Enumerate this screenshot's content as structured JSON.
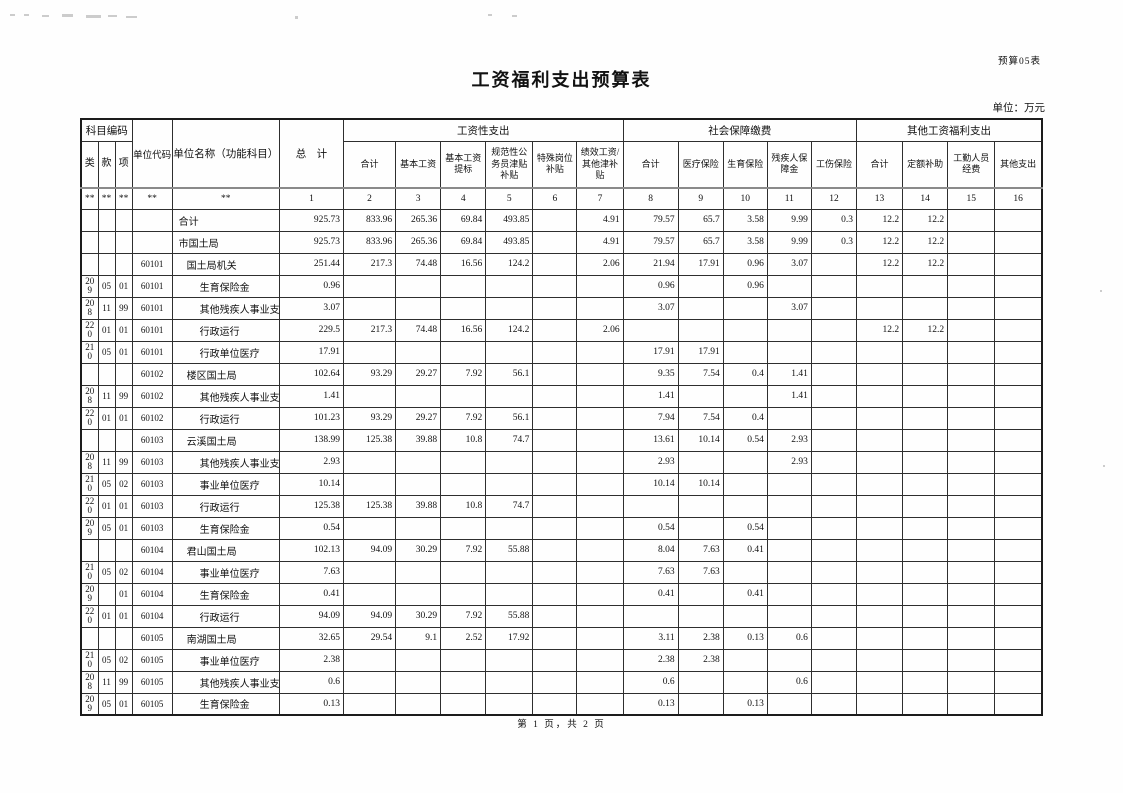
{
  "page": {
    "doc_label": "预算05表",
    "title": "工资福利支出预算表",
    "unit_note": "单位：万元",
    "footer": "第 1 页，共 2 页"
  },
  "table": {
    "header": {
      "subject_code": "科目编码",
      "lei": "类",
      "kuan": "款",
      "xiang": "项",
      "unit_code": "单位代码",
      "unit_name": "单位名称（功能科目）",
      "total": "总　计",
      "groups": [
        {
          "label": "工资性支出",
          "cols": [
            "合计",
            "基本工资",
            "基本工资提标",
            "规范性公务员津贴补贴",
            "特殊岗位补贴",
            "绩效工资/其他津补贴"
          ]
        },
        {
          "label": "社会保障缴费",
          "cols": [
            "合计",
            "医疗保险",
            "生育保险",
            "残疾人保障金",
            "工伤保险"
          ]
        },
        {
          "label": "其他工资福利支出",
          "cols": [
            "合计",
            "定额补助",
            "工勤人员经费",
            "其他支出"
          ]
        }
      ],
      "index_row": [
        "**",
        "**",
        "**",
        "**",
        "**",
        "1",
        "2",
        "3",
        "4",
        "5",
        "6",
        "7",
        "8",
        "9",
        "10",
        "11",
        "12",
        "13",
        "14",
        "15",
        "16"
      ]
    },
    "rows": [
      {
        "lei": "",
        "kuan": "",
        "xiang": "",
        "code": "",
        "name": "合计",
        "indent": 0,
        "v": [
          "925.73",
          "833.96",
          "265.36",
          "69.84",
          "493.85",
          "",
          "4.91",
          "79.57",
          "65.7",
          "3.58",
          "9.99",
          "0.3",
          "12.2",
          "12.2",
          "",
          ""
        ]
      },
      {
        "lei": "",
        "kuan": "",
        "xiang": "",
        "code": "",
        "name": "市国土局",
        "indent": 0,
        "v": [
          "925.73",
          "833.96",
          "265.36",
          "69.84",
          "493.85",
          "",
          "4.91",
          "79.57",
          "65.7",
          "3.58",
          "9.99",
          "0.3",
          "12.2",
          "12.2",
          "",
          ""
        ]
      },
      {
        "lei": "",
        "kuan": "",
        "xiang": "",
        "code": "60101",
        "name": "国土局机关",
        "indent": 1,
        "v": [
          "251.44",
          "217.3",
          "74.48",
          "16.56",
          "124.2",
          "",
          "2.06",
          "21.94",
          "17.91",
          "0.96",
          "3.07",
          "",
          "12.2",
          "12.2",
          "",
          ""
        ]
      },
      {
        "lei": "209",
        "kuan": "05",
        "xiang": "01",
        "code": "60101",
        "name": "生育保险金",
        "indent": 2,
        "v": [
          "0.96",
          "",
          "",
          "",
          "",
          "",
          "",
          "0.96",
          "",
          "0.96",
          "",
          "",
          "",
          "",
          "",
          ""
        ]
      },
      {
        "lei": "208",
        "kuan": "11",
        "xiang": "99",
        "code": "60101",
        "name": "其他残疾人事业支出",
        "indent": 2,
        "v": [
          "3.07",
          "",
          "",
          "",
          "",
          "",
          "",
          "3.07",
          "",
          "",
          "3.07",
          "",
          "",
          "",
          "",
          ""
        ]
      },
      {
        "lei": "220",
        "kuan": "01",
        "xiang": "01",
        "code": "60101",
        "name": "行政运行",
        "indent": 2,
        "v": [
          "229.5",
          "217.3",
          "74.48",
          "16.56",
          "124.2",
          "",
          "2.06",
          "",
          "",
          "",
          "",
          "",
          "12.2",
          "12.2",
          "",
          ""
        ]
      },
      {
        "lei": "210",
        "kuan": "05",
        "xiang": "01",
        "code": "60101",
        "name": "行政单位医疗",
        "indent": 2,
        "v": [
          "17.91",
          "",
          "",
          "",
          "",
          "",
          "",
          "17.91",
          "17.91",
          "",
          "",
          "",
          "",
          "",
          "",
          ""
        ]
      },
      {
        "lei": "",
        "kuan": "",
        "xiang": "",
        "code": "60102",
        "name": "楼区国土局",
        "indent": 1,
        "v": [
          "102.64",
          "93.29",
          "29.27",
          "7.92",
          "56.1",
          "",
          "",
          "9.35",
          "7.54",
          "0.4",
          "1.41",
          "",
          "",
          "",
          "",
          ""
        ]
      },
      {
        "lei": "208",
        "kuan": "11",
        "xiang": "99",
        "code": "60102",
        "name": "其他残疾人事业支出",
        "indent": 2,
        "v": [
          "1.41",
          "",
          "",
          "",
          "",
          "",
          "",
          "1.41",
          "",
          "",
          "1.41",
          "",
          "",
          "",
          "",
          ""
        ]
      },
      {
        "lei": "220",
        "kuan": "01",
        "xiang": "01",
        "code": "60102",
        "name": "行政运行",
        "indent": 2,
        "v": [
          "101.23",
          "93.29",
          "29.27",
          "7.92",
          "56.1",
          "",
          "",
          "7.94",
          "7.54",
          "0.4",
          "",
          "",
          "",
          "",
          "",
          ""
        ]
      },
      {
        "lei": "",
        "kuan": "",
        "xiang": "",
        "code": "60103",
        "name": "云溪国土局",
        "indent": 1,
        "v": [
          "138.99",
          "125.38",
          "39.88",
          "10.8",
          "74.7",
          "",
          "",
          "13.61",
          "10.14",
          "0.54",
          "2.93",
          "",
          "",
          "",
          "",
          ""
        ]
      },
      {
        "lei": "208",
        "kuan": "11",
        "xiang": "99",
        "code": "60103",
        "name": "其他残疾人事业支出",
        "indent": 2,
        "v": [
          "2.93",
          "",
          "",
          "",
          "",
          "",
          "",
          "2.93",
          "",
          "",
          "2.93",
          "",
          "",
          "",
          "",
          ""
        ]
      },
      {
        "lei": "210",
        "kuan": "05",
        "xiang": "02",
        "code": "60103",
        "name": "事业单位医疗",
        "indent": 2,
        "v": [
          "10.14",
          "",
          "",
          "",
          "",
          "",
          "",
          "10.14",
          "10.14",
          "",
          "",
          "",
          "",
          "",
          "",
          ""
        ]
      },
      {
        "lei": "220",
        "kuan": "01",
        "xiang": "01",
        "code": "60103",
        "name": "行政运行",
        "indent": 2,
        "v": [
          "125.38",
          "125.38",
          "39.88",
          "10.8",
          "74.7",
          "",
          "",
          "",
          "",
          "",
          "",
          "",
          "",
          "",
          "",
          ""
        ]
      },
      {
        "lei": "209",
        "kuan": "05",
        "xiang": "01",
        "code": "60103",
        "name": "生育保险金",
        "indent": 2,
        "v": [
          "0.54",
          "",
          "",
          "",
          "",
          "",
          "",
          "0.54",
          "",
          "0.54",
          "",
          "",
          "",
          "",
          "",
          ""
        ]
      },
      {
        "lei": "",
        "kuan": "",
        "xiang": "",
        "code": "60104",
        "name": "君山国土局",
        "indent": 1,
        "v": [
          "102.13",
          "94.09",
          "30.29",
          "7.92",
          "55.88",
          "",
          "",
          "8.04",
          "7.63",
          "0.41",
          "",
          "",
          "",
          "",
          "",
          ""
        ]
      },
      {
        "lei": "210",
        "kuan": "05",
        "xiang": "02",
        "code": "60104",
        "name": "事业单位医疗",
        "indent": 2,
        "v": [
          "7.63",
          "",
          "",
          "",
          "",
          "",
          "",
          "7.63",
          "7.63",
          "",
          "",
          "",
          "",
          "",
          "",
          ""
        ]
      },
      {
        "lei": "209",
        "kuan": "",
        "xiang": "01",
        "code": "60104",
        "name": "生育保险金",
        "indent": 2,
        "v": [
          "0.41",
          "",
          "",
          "",
          "",
          "",
          "",
          "0.41",
          "",
          "0.41",
          "",
          "",
          "",
          "",
          "",
          ""
        ]
      },
      {
        "lei": "220",
        "kuan": "01",
        "xiang": "01",
        "code": "60104",
        "name": "行政运行",
        "indent": 2,
        "v": [
          "94.09",
          "94.09",
          "30.29",
          "7.92",
          "55.88",
          "",
          "",
          "",
          "",
          "",
          "",
          "",
          "",
          "",
          "",
          ""
        ]
      },
      {
        "lei": "",
        "kuan": "",
        "xiang": "",
        "code": "60105",
        "name": "南湖国土局",
        "indent": 1,
        "v": [
          "32.65",
          "29.54",
          "9.1",
          "2.52",
          "17.92",
          "",
          "",
          "3.11",
          "2.38",
          "0.13",
          "0.6",
          "",
          "",
          "",
          "",
          ""
        ]
      },
      {
        "lei": "210",
        "kuan": "05",
        "xiang": "02",
        "code": "60105",
        "name": "事业单位医疗",
        "indent": 2,
        "v": [
          "2.38",
          "",
          "",
          "",
          "",
          "",
          "",
          "2.38",
          "2.38",
          "",
          "",
          "",
          "",
          "",
          "",
          ""
        ]
      },
      {
        "lei": "208",
        "kuan": "11",
        "xiang": "99",
        "code": "60105",
        "name": "其他残疾人事业支出",
        "indent": 2,
        "v": [
          "0.6",
          "",
          "",
          "",
          "",
          "",
          "",
          "0.6",
          "",
          "",
          "0.6",
          "",
          "",
          "",
          "",
          ""
        ]
      },
      {
        "lei": "209",
        "kuan": "05",
        "xiang": "01",
        "code": "60105",
        "name": "生育保险金",
        "indent": 2,
        "v": [
          "0.13",
          "",
          "",
          "",
          "",
          "",
          "",
          "0.13",
          "",
          "0.13",
          "",
          "",
          "",
          "",
          "",
          ""
        ]
      }
    ]
  }
}
